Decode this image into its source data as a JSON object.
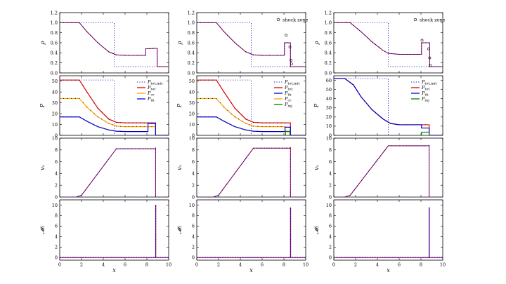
{
  "figure": {
    "shared_xlabel": "x",
    "shock_zone_label": "shock zone"
  },
  "colors": {
    "init": "#4040d0",
    "tot": "#e00000",
    "th": "#0000e0",
    "cr": "#ffa500",
    "inj": "#008000",
    "dots": "#000000"
  },
  "chart_data": [
    {
      "type": "line",
      "column": 1,
      "row": "rho",
      "ylabel": "ρ",
      "xlim": [
        0,
        10
      ],
      "ylim": [
        0,
        1.2
      ],
      "yticks": [
        0.0,
        0.2,
        0.4,
        0.6,
        0.8,
        1.0,
        1.2
      ],
      "ytick_labels": [
        "0.0",
        "0.2",
        "0.4",
        "0.6",
        "0.8",
        "1.0",
        "1.2"
      ],
      "series": [
        {
          "name": "initial",
          "style": "init",
          "x": [
            0,
            5,
            5,
            10
          ],
          "y": [
            1.0,
            1.0,
            0.125,
            0.125
          ]
        },
        {
          "name": "rho",
          "style": "rho",
          "x": [
            0,
            1.8,
            2.5,
            3.5,
            4.5,
            5.2,
            6,
            7.9,
            7.9,
            8.95,
            8.95,
            10
          ],
          "y": [
            1.0,
            1.0,
            0.82,
            0.6,
            0.42,
            0.36,
            0.35,
            0.35,
            0.48,
            0.49,
            0.125,
            0.125
          ]
        }
      ],
      "markers": [],
      "legend": []
    },
    {
      "type": "line",
      "column": 1,
      "row": "P",
      "ylabel": "P",
      "xlim": [
        0,
        10
      ],
      "ylim": [
        0,
        55
      ],
      "yticks": [
        0,
        10,
        20,
        30,
        40,
        50
      ],
      "ytick_labels": [
        "0",
        "10",
        "20",
        "30",
        "40",
        "50"
      ],
      "series": [
        {
          "name": "P_tot,init",
          "style": "init",
          "x": [
            0,
            5,
            5,
            10
          ],
          "y": [
            51,
            51,
            0,
            0
          ]
        },
        {
          "name": "P_tot",
          "style": "tot",
          "x": [
            0,
            1.8,
            2.5,
            3.5,
            4.5,
            5.2,
            6,
            8.1,
            8.1,
            8.8,
            8.8,
            10
          ],
          "y": [
            51,
            51,
            40,
            25,
            15,
            12,
            11.5,
            11.5,
            11.5,
            11.5,
            0,
            0
          ]
        },
        {
          "name": "P_cr",
          "style": "cr",
          "x": [
            0,
            1.8,
            2.5,
            3.5,
            4.5,
            5.2,
            6,
            8.1,
            8.1,
            8.8,
            8.8,
            10
          ],
          "y": [
            34,
            34,
            26,
            17,
            11,
            8.5,
            8,
            8,
            8,
            8,
            0,
            0
          ]
        },
        {
          "name": "P_th",
          "style": "th",
          "x": [
            0,
            1.8,
            2.5,
            3.5,
            4.5,
            5.2,
            6,
            8.1,
            8.1,
            8.8,
            8.8,
            10
          ],
          "y": [
            17,
            17,
            13,
            8,
            5,
            3.8,
            3.5,
            3.5,
            11,
            11,
            0,
            0
          ]
        }
      ],
      "legend": [
        {
          "main": "P",
          "sub": "tot,init",
          "style": "init"
        },
        {
          "main": "P",
          "sub": "tot",
          "style": "tot"
        },
        {
          "main": "P",
          "sub": "cr",
          "style": "cr"
        },
        {
          "main": "P",
          "sub": "th",
          "style": "th"
        }
      ]
    },
    {
      "type": "line",
      "column": 1,
      "row": "vx",
      "ylabel": "vₓ",
      "xlim": [
        0,
        10
      ],
      "ylim": [
        0,
        10
      ],
      "yticks": [
        0,
        2,
        4,
        6,
        8,
        10
      ],
      "ytick_labels": [
        "0",
        "2",
        "4",
        "6",
        "8",
        "10"
      ],
      "series": [
        {
          "name": "initial",
          "style": "init",
          "x": [
            0,
            10
          ],
          "y": [
            0,
            0
          ]
        },
        {
          "name": "vx",
          "style": "vel",
          "x": [
            0,
            1.5,
            2,
            5.2,
            8.75,
            8.8,
            8.8,
            10
          ],
          "y": [
            0,
            0,
            0.3,
            8.2,
            8.2,
            8.3,
            0,
            0
          ]
        }
      ],
      "legend": []
    },
    {
      "type": "line",
      "column": 1,
      "row": "M1",
      "ylabel": "𝓜₁",
      "xlim": [
        0,
        10
      ],
      "ylim": [
        -0.5,
        11
      ],
      "yticks": [
        0,
        2,
        4,
        6,
        8,
        10
      ],
      "ytick_labels": [
        "0",
        "2",
        "4",
        "6",
        "8",
        "10"
      ],
      "xticks": [
        0,
        2,
        4,
        6,
        8,
        10
      ],
      "xtick_labels": [
        "0",
        "2",
        "4",
        "6",
        "8",
        "10"
      ],
      "series": [
        {
          "name": "initial",
          "style": "init",
          "x": [
            0,
            10
          ],
          "y": [
            0,
            0
          ]
        },
        {
          "name": "M1",
          "style": "mach",
          "x": [
            0,
            8.8,
            8.8,
            8.82,
            8.82,
            10
          ],
          "y": [
            0,
            0,
            10,
            10,
            0,
            0
          ]
        }
      ],
      "legend": []
    },
    {
      "type": "line",
      "column": 2,
      "row": "rho",
      "ylabel": "ρ",
      "xlim": [
        0,
        10
      ],
      "ylim": [
        0,
        1.2
      ],
      "yticks": [
        0.0,
        0.2,
        0.4,
        0.6,
        0.8,
        1.0,
        1.2
      ],
      "ytick_labels": [
        "0.0",
        "0.2",
        "0.4",
        "0.6",
        "0.8",
        "1.0",
        "1.2"
      ],
      "series": [
        {
          "name": "initial",
          "style": "init",
          "x": [
            0,
            5,
            5,
            10
          ],
          "y": [
            1.0,
            1.0,
            0.125,
            0.125
          ]
        },
        {
          "name": "rho",
          "style": "rho",
          "x": [
            0,
            1.8,
            2.5,
            3.5,
            4.5,
            5.2,
            6,
            8.05,
            8.05,
            8.6,
            8.6,
            10
          ],
          "y": [
            1.0,
            1.0,
            0.82,
            0.6,
            0.42,
            0.36,
            0.35,
            0.35,
            0.6,
            0.6,
            0.125,
            0.125
          ]
        }
      ],
      "markers": [
        {
          "x": 8.2,
          "y": 0.75
        },
        {
          "x": 8.55,
          "y": 0.52
        },
        {
          "x": 8.65,
          "y": 0.25
        },
        {
          "x": 8.7,
          "y": 0.18
        }
      ],
      "legend": [
        {
          "text": "shock zone",
          "style": "marker"
        }
      ]
    },
    {
      "type": "line",
      "column": 2,
      "row": "P",
      "ylabel": "P",
      "xlim": [
        0,
        10
      ],
      "ylim": [
        0,
        55
      ],
      "yticks": [
        0,
        10,
        20,
        30,
        40,
        50
      ],
      "ytick_labels": [
        "0",
        "10",
        "20",
        "30",
        "40",
        "50"
      ],
      "series": [
        {
          "name": "P_tot,init",
          "style": "init",
          "x": [
            0,
            5,
            5,
            10
          ],
          "y": [
            51,
            51,
            0,
            0
          ]
        },
        {
          "name": "P_tot",
          "style": "tot",
          "x": [
            0,
            1.8,
            2.5,
            3.5,
            4.5,
            5.2,
            6,
            8.1,
            8.1,
            8.6,
            8.6,
            10
          ],
          "y": [
            51,
            51,
            40,
            25,
            15,
            12,
            11.5,
            11.5,
            11.5,
            11.5,
            0,
            0
          ]
        },
        {
          "name": "P_cr",
          "style": "cr",
          "x": [
            0,
            1.8,
            2.5,
            3.5,
            4.5,
            5.2,
            6,
            8.1,
            8.1,
            8.6,
            8.6,
            10
          ],
          "y": [
            34,
            34,
            26,
            17,
            11,
            8.5,
            8,
            8,
            4,
            4,
            0,
            0
          ]
        },
        {
          "name": "P_th",
          "style": "th",
          "x": [
            0,
            1.8,
            2.5,
            3.5,
            4.5,
            5.2,
            6,
            8.1,
            8.1,
            8.6,
            8.6,
            10
          ],
          "y": [
            17,
            17,
            13,
            8,
            5,
            3.8,
            3.5,
            3.5,
            7.5,
            7.5,
            0,
            0
          ]
        },
        {
          "name": "P_inj",
          "style": "inj",
          "x": [
            8.15,
            8.15,
            8.55,
            8.55
          ],
          "y": [
            0,
            3.5,
            3.5,
            0
          ]
        }
      ],
      "legend": [
        {
          "main": "P",
          "sub": "tot,init",
          "style": "init"
        },
        {
          "main": "P",
          "sub": "tot",
          "style": "tot"
        },
        {
          "main": "P",
          "sub": "th",
          "style": "th"
        },
        {
          "main": "P",
          "sub": "cr",
          "style": "cr"
        },
        {
          "main": "P",
          "sub": "inj",
          "style": "inj"
        }
      ]
    },
    {
      "type": "line",
      "column": 2,
      "row": "vx",
      "ylabel": "vₓ",
      "xlim": [
        0,
        10
      ],
      "ylim": [
        0,
        10
      ],
      "yticks": [
        0,
        2,
        4,
        6,
        8,
        10
      ],
      "ytick_labels": [
        "0",
        "2",
        "4",
        "6",
        "8",
        "10"
      ],
      "series": [
        {
          "name": "initial",
          "style": "init",
          "x": [
            0,
            10
          ],
          "y": [
            0,
            0
          ]
        },
        {
          "name": "vx",
          "style": "vel",
          "x": [
            0,
            1.5,
            2,
            5.2,
            8.55,
            8.6,
            8.6,
            10
          ],
          "y": [
            0,
            0,
            0.3,
            8.3,
            8.3,
            8.4,
            0,
            0
          ]
        }
      ],
      "legend": []
    },
    {
      "type": "line",
      "column": 2,
      "row": "M1",
      "ylabel": "𝓜₁",
      "xlim": [
        0,
        10
      ],
      "ylim": [
        -0.5,
        11
      ],
      "yticks": [
        0,
        2,
        4,
        6,
        8,
        10
      ],
      "ytick_labels": [
        "0",
        "2",
        "4",
        "6",
        "8",
        "10"
      ],
      "xticks": [
        0,
        2,
        4,
        6,
        8,
        10
      ],
      "xtick_labels": [
        "0",
        "2",
        "4",
        "6",
        "8",
        "10"
      ],
      "series": [
        {
          "name": "initial",
          "style": "init",
          "x": [
            0,
            10
          ],
          "y": [
            0,
            0
          ]
        },
        {
          "name": "M1",
          "style": "mach",
          "x": [
            0,
            8.6,
            8.6,
            8.62,
            8.62,
            10
          ],
          "y": [
            0,
            0,
            9.5,
            9.5,
            0,
            0
          ]
        }
      ],
      "legend": []
    },
    {
      "type": "line",
      "column": 3,
      "row": "rho",
      "ylabel": "ρ",
      "xlim": [
        0,
        10
      ],
      "ylim": [
        0,
        1.2
      ],
      "yticks": [
        0.0,
        0.2,
        0.4,
        0.6,
        0.8,
        1.0,
        1.2
      ],
      "ytick_labels": [
        "0.0",
        "0.2",
        "0.4",
        "0.6",
        "0.8",
        "1.0",
        "1.2"
      ],
      "series": [
        {
          "name": "initial",
          "style": "init",
          "x": [
            0,
            5,
            5,
            10
          ],
          "y": [
            1.0,
            1.0,
            0.125,
            0.125
          ]
        },
        {
          "name": "rho",
          "style": "rho",
          "x": [
            0,
            1.5,
            2.5,
            3.5,
            4.5,
            5,
            6,
            8.05,
            8.05,
            8.8,
            8.8,
            10
          ],
          "y": [
            1.0,
            1.0,
            0.82,
            0.62,
            0.45,
            0.39,
            0.37,
            0.37,
            0.6,
            0.6,
            0.125,
            0.125
          ]
        }
      ],
      "markers": [
        {
          "x": 8.1,
          "y": 0.65
        },
        {
          "x": 8.7,
          "y": 0.48
        },
        {
          "x": 8.8,
          "y": 0.3
        },
        {
          "x": 8.85,
          "y": 0.15
        }
      ],
      "legend": [
        {
          "text": "shock zone",
          "style": "marker"
        }
      ]
    },
    {
      "type": "line",
      "column": 3,
      "row": "P",
      "ylabel": "P",
      "xlim": [
        0,
        10
      ],
      "ylim": [
        0,
        65
      ],
      "yticks": [
        0,
        10,
        20,
        30,
        40,
        50,
        60
      ],
      "ytick_labels": [
        "0",
        "10",
        "20",
        "30",
        "40",
        "50",
        "60"
      ],
      "series": [
        {
          "name": "P_tot,init",
          "style": "init",
          "x": [
            0,
            5,
            5,
            10
          ],
          "y": [
            62,
            62,
            0,
            0
          ]
        },
        {
          "name": "P_tot",
          "style": "tot",
          "x": [
            0,
            1,
            1.8,
            2.5,
            3.5,
            4.5,
            5.2,
            6,
            8.05,
            8.05,
            8.75,
            8.75,
            10
          ],
          "y": [
            62,
            62,
            55,
            42,
            28,
            18,
            13,
            11.5,
            11.5,
            11.5,
            11.5,
            0,
            0
          ]
        },
        {
          "name": "P_th",
          "style": "th",
          "x": [
            0,
            1,
            1.8,
            2.5,
            3.5,
            4.5,
            5.2,
            6,
            8.05,
            8.05,
            8.75,
            8.75,
            10
          ],
          "y": [
            62,
            62,
            55,
            42,
            28,
            18,
            13,
            11.5,
            11.5,
            8,
            8,
            0,
            0
          ]
        },
        {
          "name": "P_inj",
          "style": "inj",
          "x": [
            8.05,
            8.05,
            8.75,
            8.75
          ],
          "y": [
            0,
            3.5,
            3.5,
            0
          ]
        }
      ],
      "legend": [
        {
          "main": "P",
          "sub": "tot,init",
          "style": "init"
        },
        {
          "main": "P",
          "sub": "tot",
          "style": "tot"
        },
        {
          "main": "P",
          "sub": "th",
          "style": "th"
        },
        {
          "main": "P",
          "sub": "inj",
          "style": "inj"
        }
      ]
    },
    {
      "type": "line",
      "column": 3,
      "row": "vx",
      "ylabel": "vₓ",
      "xlim": [
        0,
        10
      ],
      "ylim": [
        0,
        10
      ],
      "yticks": [
        0,
        2,
        4,
        6,
        8,
        10
      ],
      "ytick_labels": [
        "0",
        "2",
        "4",
        "6",
        "8",
        "10"
      ],
      "series": [
        {
          "name": "initial",
          "style": "init",
          "x": [
            0,
            10
          ],
          "y": [
            0,
            0
          ]
        },
        {
          "name": "vx",
          "style": "vel",
          "x": [
            0,
            1,
            1.5,
            5,
            8.7,
            8.75,
            8.75,
            10
          ],
          "y": [
            0,
            0,
            0.3,
            8.7,
            8.7,
            8.75,
            0,
            0
          ]
        }
      ],
      "legend": []
    },
    {
      "type": "line",
      "column": 3,
      "row": "M1",
      "ylabel": "𝓜₁",
      "xlim": [
        0,
        10
      ],
      "ylim": [
        -0.5,
        11
      ],
      "yticks": [
        0,
        2,
        4,
        6,
        8,
        10
      ],
      "ytick_labels": [
        "0",
        "2",
        "4",
        "6",
        "8",
        "10"
      ],
      "xticks": [
        0,
        2,
        4,
        6,
        8,
        10
      ],
      "xtick_labels": [
        "0",
        "2",
        "4",
        "6",
        "8",
        "10"
      ],
      "series": [
        {
          "name": "initial",
          "style": "init",
          "x": [
            0,
            10
          ],
          "y": [
            0,
            0
          ]
        },
        {
          "name": "M1",
          "style": "mach",
          "x": [
            0,
            8.75,
            8.75,
            8.77,
            8.77,
            10
          ],
          "y": [
            0,
            0,
            9.5,
            9.5,
            0,
            0
          ]
        }
      ],
      "legend": []
    }
  ]
}
